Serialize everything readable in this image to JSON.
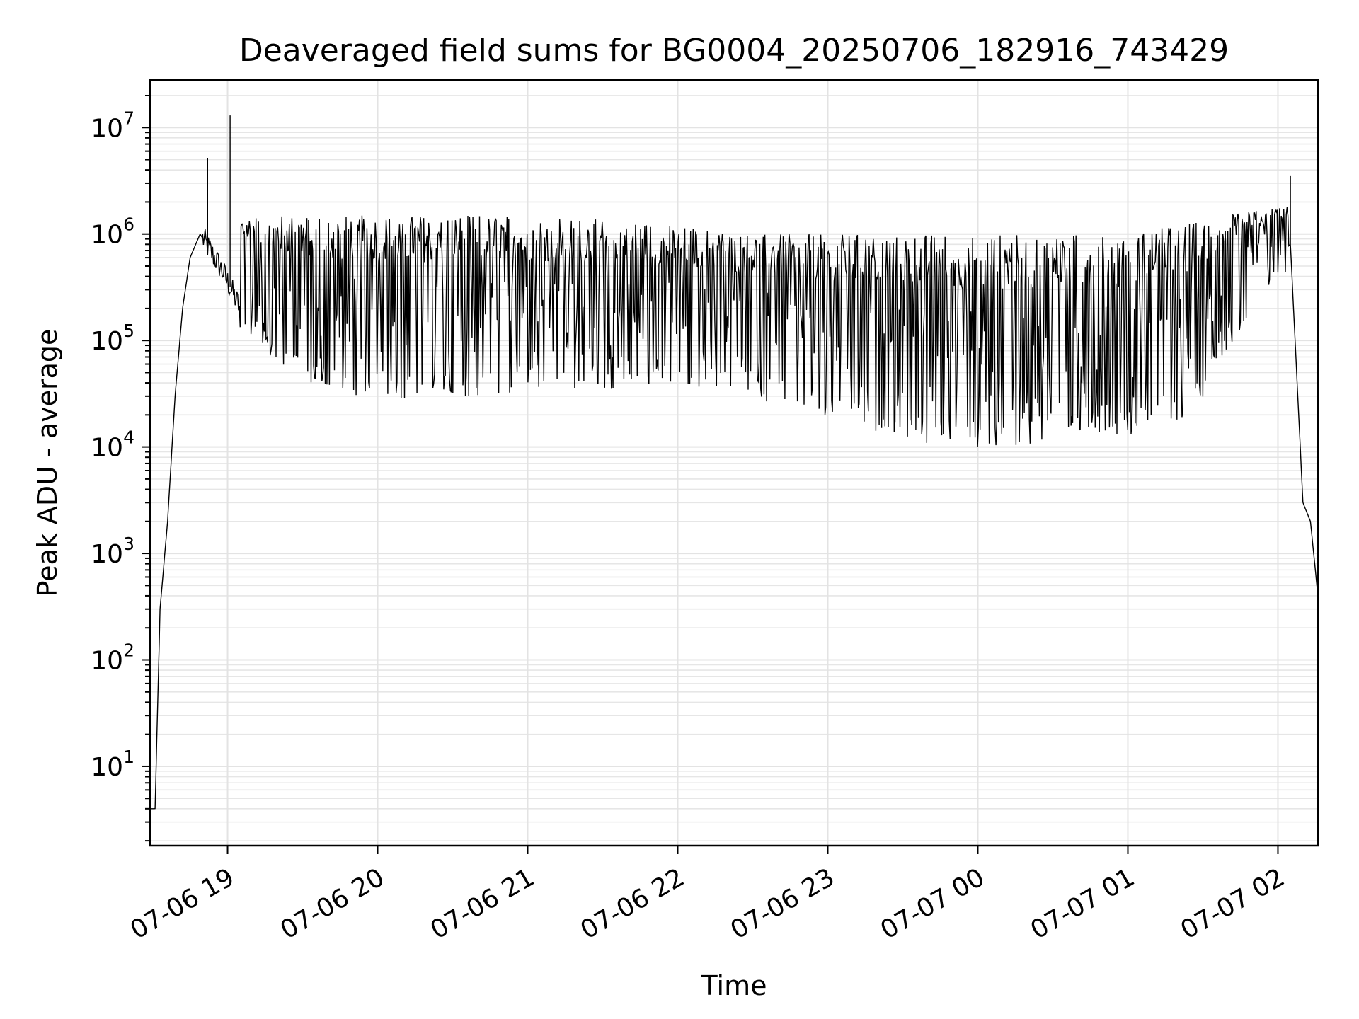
{
  "chart_data": {
    "type": "line",
    "title": "Deaveraged field sums for BG0004_20250706_182916_743429",
    "xlabel": "Time",
    "ylabel": "Peak ADU - average",
    "yscale": "log",
    "ylim": [
      1.8,
      28000000
    ],
    "xlim": [
      "2025-07-06 18:29",
      "2025-07-07 02:16"
    ],
    "grid": "on (major and minor)",
    "line_color": "#000000",
    "x_ticks": [
      "07-06 19",
      "07-06 20",
      "07-06 21",
      "07-06 22",
      "07-06 23",
      "07-07 00",
      "07-07 01",
      "07-07 02"
    ],
    "y_ticks": [
      {
        "base": "10",
        "exp": "1"
      },
      {
        "base": "10",
        "exp": "2"
      },
      {
        "base": "10",
        "exp": "3"
      },
      {
        "base": "10",
        "exp": "4"
      },
      {
        "base": "10",
        "exp": "5"
      },
      {
        "base": "10",
        "exp": "6"
      },
      {
        "base": "10",
        "exp": "7"
      }
    ],
    "series": [
      {
        "values_note_baseline": [
          [
            "2025-07-06 18:29",
            4
          ],
          [
            "2025-07-06 18:31",
            4
          ],
          [
            "2025-07-06 18:33",
            300
          ],
          [
            "2025-07-06 18:36",
            2000
          ],
          [
            "2025-07-06 18:39",
            30000
          ],
          [
            "2025-07-06 18:42",
            200000
          ],
          [
            "2025-07-06 18:45",
            600000
          ],
          [
            "2025-07-06 18:49",
            1000000
          ],
          [
            "2025-07-06 18:53",
            700000
          ],
          [
            "2025-07-06 18:58",
            450000
          ],
          [
            "2025-07-06 19:05",
            200000
          ],
          [
            "2025-07-06 19:20",
            100000
          ],
          [
            "2025-07-06 19:40",
            60000
          ],
          [
            "2025-07-06 20:00",
            50000
          ],
          [
            "2025-07-06 20:30",
            50000
          ],
          [
            "2025-07-06 21:00",
            55000
          ],
          [
            "2025-07-06 21:30",
            60000
          ],
          [
            "2025-07-06 22:00",
            70000
          ],
          [
            "2025-07-06 22:30",
            50000
          ],
          [
            "2025-07-06 23:00",
            35000
          ],
          [
            "2025-07-06 23:30",
            20000
          ],
          [
            "2025-07-07 00:00",
            17000
          ],
          [
            "2025-07-07 00:30",
            20000
          ],
          [
            "2025-07-07 01:00",
            22000
          ],
          [
            "2025-07-07 01:25",
            30000
          ],
          [
            "2025-07-07 01:40",
            150000
          ],
          [
            "2025-07-07 01:55",
            500000
          ],
          [
            "2025-07-07 02:05",
            800000
          ],
          [
            "2025-07-07 02:10",
            3000
          ],
          [
            "2025-07-07 02:13",
            2000
          ],
          [
            "2025-07-07 02:16",
            400
          ]
        ],
        "peak_envelope": [
          [
            "2025-07-06 19:05",
            1500000
          ],
          [
            "2025-07-06 19:30",
            1500000
          ],
          [
            "2025-07-06 20:00",
            1500000
          ],
          [
            "2025-07-06 21:00",
            1500000
          ],
          [
            "2025-07-06 21:45",
            1300000
          ],
          [
            "2025-07-06 22:30",
            1000000
          ],
          [
            "2025-07-06 23:00",
            1000000
          ],
          [
            "2025-07-07 00:00",
            1000000
          ],
          [
            "2025-07-07 01:00",
            1000000
          ],
          [
            "2025-07-07 01:40",
            1500000
          ],
          [
            "2025-07-07 02:00",
            1800000
          ]
        ],
        "spikes": [
          [
            "2025-07-06 18:52",
            5200000
          ],
          [
            "2025-07-06 19:01",
            13000000
          ],
          [
            "2025-07-07 02:05",
            3500000
          ]
        ]
      }
    ]
  }
}
